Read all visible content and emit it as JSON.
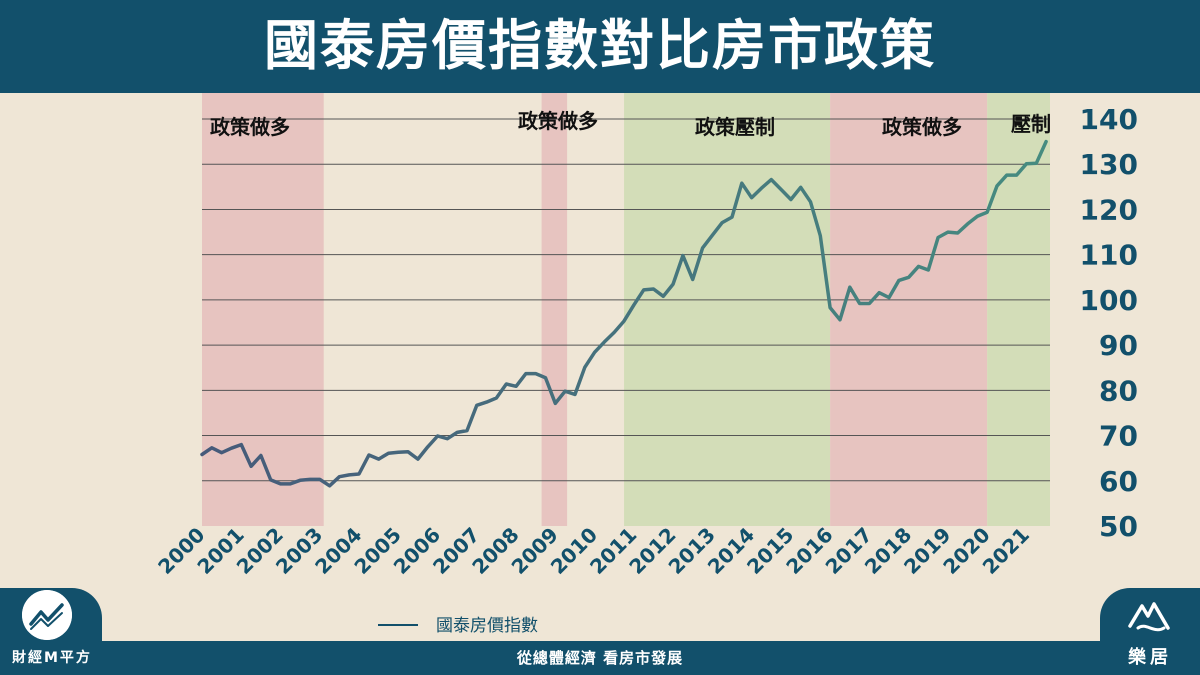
{
  "header": {
    "title": "國泰房價指數對比房市政策"
  },
  "chart_data": {
    "type": "line",
    "title": "國泰房價指數對比房市政策",
    "xlabel": "",
    "ylabel": "",
    "y_axis_side": "right",
    "ylim": [
      50,
      140
    ],
    "yticks": [
      50,
      60,
      70,
      80,
      90,
      100,
      110,
      120,
      130,
      140
    ],
    "xticks": [
      "2000",
      "2001",
      "2002",
      "2003",
      "2004",
      "2005",
      "2006",
      "2007",
      "2008",
      "2009",
      "2010",
      "2011",
      "2012",
      "2013",
      "2014",
      "2015",
      "2016",
      "2017",
      "2018",
      "2019",
      "2020",
      "2021"
    ],
    "grid": "horizontal",
    "legend_placement": "bottom-center",
    "line_color_start": "#465a7a",
    "line_color_end": "#468c80",
    "regions": [
      {
        "label": "政策做多",
        "start": 2000.0,
        "end": 2003.1,
        "color": "#e7c4c0"
      },
      {
        "label": "政策做多",
        "start": 2008.65,
        "end": 2009.3,
        "color": "#e7c4c0"
      },
      {
        "label": "政策壓制",
        "start": 2010.75,
        "end": 2016.0,
        "color": "#d3ddb8"
      },
      {
        "label": "政策做多",
        "start": 2016.0,
        "end": 2020.0,
        "color": "#e7c4c0"
      },
      {
        "label": "壓制",
        "start": 2020.0,
        "end": 2021.6,
        "color": "#d3ddb8"
      }
    ],
    "series": [
      {
        "name": "國泰房價指數",
        "x": [
          2000.0,
          2000.25,
          2000.5,
          2000.75,
          2001.0,
          2001.25,
          2001.5,
          2001.75,
          2002.0,
          2002.25,
          2002.5,
          2002.75,
          2003.0,
          2003.25,
          2003.5,
          2003.75,
          2004.0,
          2004.25,
          2004.5,
          2004.75,
          2005.0,
          2005.25,
          2005.5,
          2005.75,
          2006.0,
          2006.25,
          2006.5,
          2006.75,
          2007.0,
          2007.25,
          2007.5,
          2007.75,
          2008.0,
          2008.25,
          2008.5,
          2008.75,
          2009.0,
          2009.25,
          2009.5,
          2009.75,
          2010.0,
          2010.25,
          2010.5,
          2010.75,
          2011.0,
          2011.25,
          2011.5,
          2011.75,
          2012.0,
          2012.25,
          2012.5,
          2012.75,
          2013.0,
          2013.25,
          2013.5,
          2013.75,
          2014.0,
          2014.25,
          2014.5,
          2014.75,
          2015.0,
          2015.25,
          2015.5,
          2015.75,
          2016.0,
          2016.25,
          2016.5,
          2016.75,
          2017.0,
          2017.25,
          2017.5,
          2017.75,
          2018.0,
          2018.25,
          2018.5,
          2018.75,
          2019.0,
          2019.25,
          2019.5,
          2019.75,
          2020.0,
          2020.25,
          2020.5,
          2020.75,
          2021.0,
          2021.25,
          2021.5
        ],
        "values": [
          65.8,
          67.3,
          66.2,
          67.2,
          68.0,
          63.2,
          65.6,
          60.2,
          59.3,
          59.3,
          60.1,
          60.3,
          60.3,
          58.9,
          60.9,
          61.3,
          61.5,
          65.7,
          64.8,
          66.1,
          66.3,
          66.4,
          64.8,
          67.5,
          69.9,
          69.3,
          70.7,
          71.1,
          76.7,
          77.4,
          78.3,
          81.4,
          80.9,
          83.7,
          83.7,
          82.8,
          77.1,
          79.8,
          79.1,
          85.1,
          88.4,
          90.7,
          92.8,
          95.3,
          98.9,
          102.2,
          102.4,
          100.8,
          103.5,
          109.8,
          104.5,
          111.5,
          114.3,
          117.1,
          118.3,
          125.8,
          122.6,
          124.7,
          126.6,
          124.4,
          122.2,
          124.9,
          121.7,
          114.2,
          98.3,
          95.6,
          102.8,
          99.2,
          99.2,
          101.6,
          100.5,
          104.3,
          105.0,
          107.4,
          106.6,
          113.8,
          115.0,
          114.8,
          116.8,
          118.5,
          119.4,
          125.2,
          127.6,
          127.6,
          130.1,
          130.2,
          135.0
        ]
      }
    ]
  },
  "legend": {
    "label": "國泰房價指數"
  },
  "footer": {
    "center_text": "從總體經濟 看房市發展",
    "brand_left": "財經M平方",
    "brand_left_icon": "chart-logo-icon",
    "brand_right": "樂居",
    "brand_right_icon": "leju-logo-icon"
  }
}
